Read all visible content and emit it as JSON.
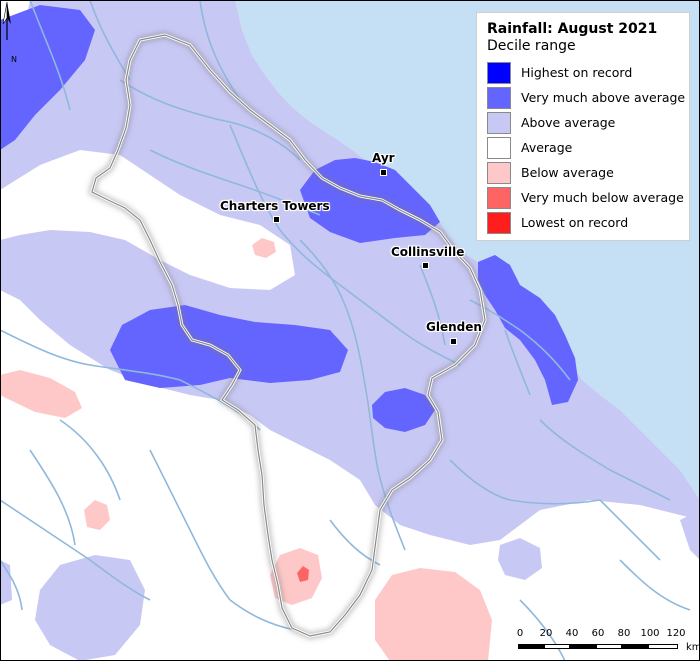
{
  "legend": {
    "title": "Rainfall: August 2021",
    "subtitle": "Decile range",
    "items": [
      {
        "label": "Highest on record",
        "color": "#0000ff"
      },
      {
        "label": "Very much above average",
        "color": "#6464ff"
      },
      {
        "label": "Above average",
        "color": "#c8c8f5"
      },
      {
        "label": "Average",
        "color": "#ffffff"
      },
      {
        "label": "Below average",
        "color": "#ffc8c8"
      },
      {
        "label": "Very much below average",
        "color": "#ff6464"
      },
      {
        "label": "Lowest on record",
        "color": "#ff1e1e"
      }
    ]
  },
  "towns": [
    {
      "name": "Ayr"
    },
    {
      "name": "Charters Towers"
    },
    {
      "name": "Collinsville"
    },
    {
      "name": "Glenden"
    }
  ],
  "north_label": "N",
  "scale_bar": {
    "ticks": [
      "0",
      "20",
      "40",
      "60",
      "80",
      "100",
      "120"
    ],
    "unit": "km"
  },
  "colors": {
    "sea": "#c5dff5",
    "river": "#8fb8dc",
    "boundary": "#999999"
  }
}
